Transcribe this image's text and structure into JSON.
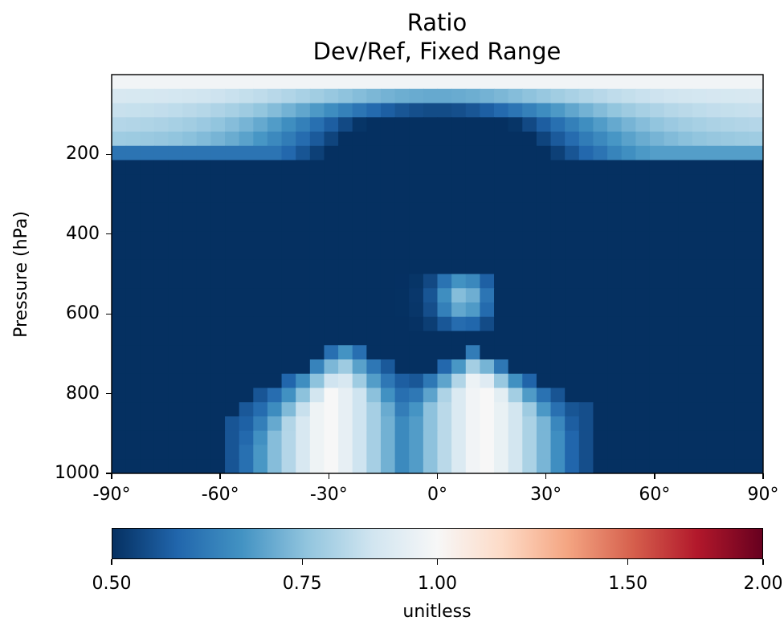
{
  "chart_data": {
    "type": "heatmap",
    "title": "Ratio",
    "subtitle": "Dev/Ref, Fixed Range",
    "xlabel": "",
    "ylabel": "Pressure (hPa)",
    "x_ticks": [
      "-90°",
      "-60°",
      "-30°",
      "0°",
      "30°",
      "60°",
      "90°"
    ],
    "y_ticks": [
      "200",
      "400",
      "600",
      "800",
      "1000"
    ],
    "xlim": [
      -90,
      90
    ],
    "ylim_pressure_hPa": [
      1000,
      0
    ],
    "colorbar": {
      "label": "unitless",
      "ticks": [
        "0.50",
        "0.75",
        "1.00",
        "1.50",
        "2.00"
      ],
      "range": [
        0.5,
        2.0
      ],
      "colormap": "RdBu_r"
    },
    "description_of_field": [
      {
        "region": "upper atmosphere above ~200 hPa, all latitudes",
        "ratio_approx": "0.6-1.0"
      },
      {
        "region": "free troposphere 200-1000 hPa",
        "ratio_approx": 0.5
      },
      {
        "region": "lower troposphere -55° to -5°, 700-1000 hPa",
        "ratio_approx": "0.75-1.0"
      },
      {
        "region": "lower troposphere 0° to 40°, 700-1000 hPa",
        "ratio_approx": "0.75-1.0"
      }
    ]
  },
  "colors": {
    "min": "#053061",
    "mid": "#f7f7f7",
    "max": "#67001f"
  }
}
